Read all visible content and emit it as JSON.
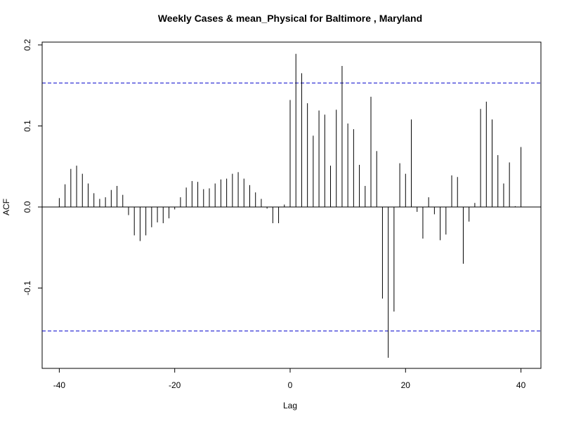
{
  "chart_data": {
    "type": "bar",
    "title": "Weekly Cases & mean_Physical for Baltimore , Maryland",
    "xlabel": "Lag",
    "ylabel": "ACF",
    "xlim": [
      -42,
      42
    ],
    "ylim": [
      -0.19,
      0.2
    ],
    "xticks": [
      -40,
      -20,
      0,
      20,
      40
    ],
    "yticks": [
      -0.1,
      0.0,
      0.1,
      0.2
    ],
    "xtick_labels": [
      "-40",
      "-20",
      "0",
      "20",
      "40"
    ],
    "ytick_labels": [
      "-0.1",
      "0.0",
      "0.1",
      "0.2"
    ],
    "confidence_band": 0.153,
    "confidence_color": "#0000cc",
    "bar_color": "#000000",
    "x": [
      -40,
      -39,
      -38,
      -37,
      -36,
      -35,
      -34,
      -33,
      -32,
      -31,
      -30,
      -29,
      -28,
      -27,
      -26,
      -25,
      -24,
      -23,
      -22,
      -21,
      -20,
      -19,
      -18,
      -17,
      -16,
      -15,
      -14,
      -13,
      -12,
      -11,
      -10,
      -9,
      -8,
      -7,
      -6,
      -5,
      -4,
      -3,
      -2,
      -1,
      0,
      1,
      2,
      3,
      4,
      5,
      6,
      7,
      8,
      9,
      10,
      11,
      12,
      13,
      14,
      15,
      16,
      17,
      18,
      19,
      20,
      21,
      22,
      23,
      24,
      25,
      26,
      27,
      28,
      29,
      30,
      31,
      32,
      33,
      34,
      35,
      36,
      37,
      38,
      39,
      40
    ],
    "values": [
      0.011,
      0.028,
      0.047,
      0.051,
      0.041,
      0.029,
      0.017,
      0.01,
      0.012,
      0.021,
      0.026,
      0.015,
      -0.01,
      -0.035,
      -0.042,
      -0.035,
      -0.025,
      -0.019,
      -0.02,
      -0.014,
      -0.003,
      0.012,
      0.024,
      0.032,
      0.031,
      0.022,
      0.023,
      0.029,
      0.034,
      0.035,
      0.041,
      0.043,
      0.035,
      0.027,
      0.018,
      0.01,
      -0.002,
      -0.02,
      -0.02,
      0.003,
      0.132,
      0.189,
      0.165,
      0.128,
      0.088,
      0.119,
      0.114,
      0.051,
      0.12,
      0.174,
      0.103,
      0.096,
      0.052,
      0.026,
      0.136,
      0.069,
      -0.113,
      -0.186,
      -0.129,
      0.054,
      0.041,
      0.108,
      -0.006,
      -0.039,
      0.012,
      -0.009,
      -0.041,
      -0.034,
      0.039,
      0.037,
      -0.07,
      -0.018,
      0.005,
      0.121,
      0.13,
      0.108,
      0.064,
      0.029,
      0.055,
      0.001,
      0.074
    ]
  }
}
